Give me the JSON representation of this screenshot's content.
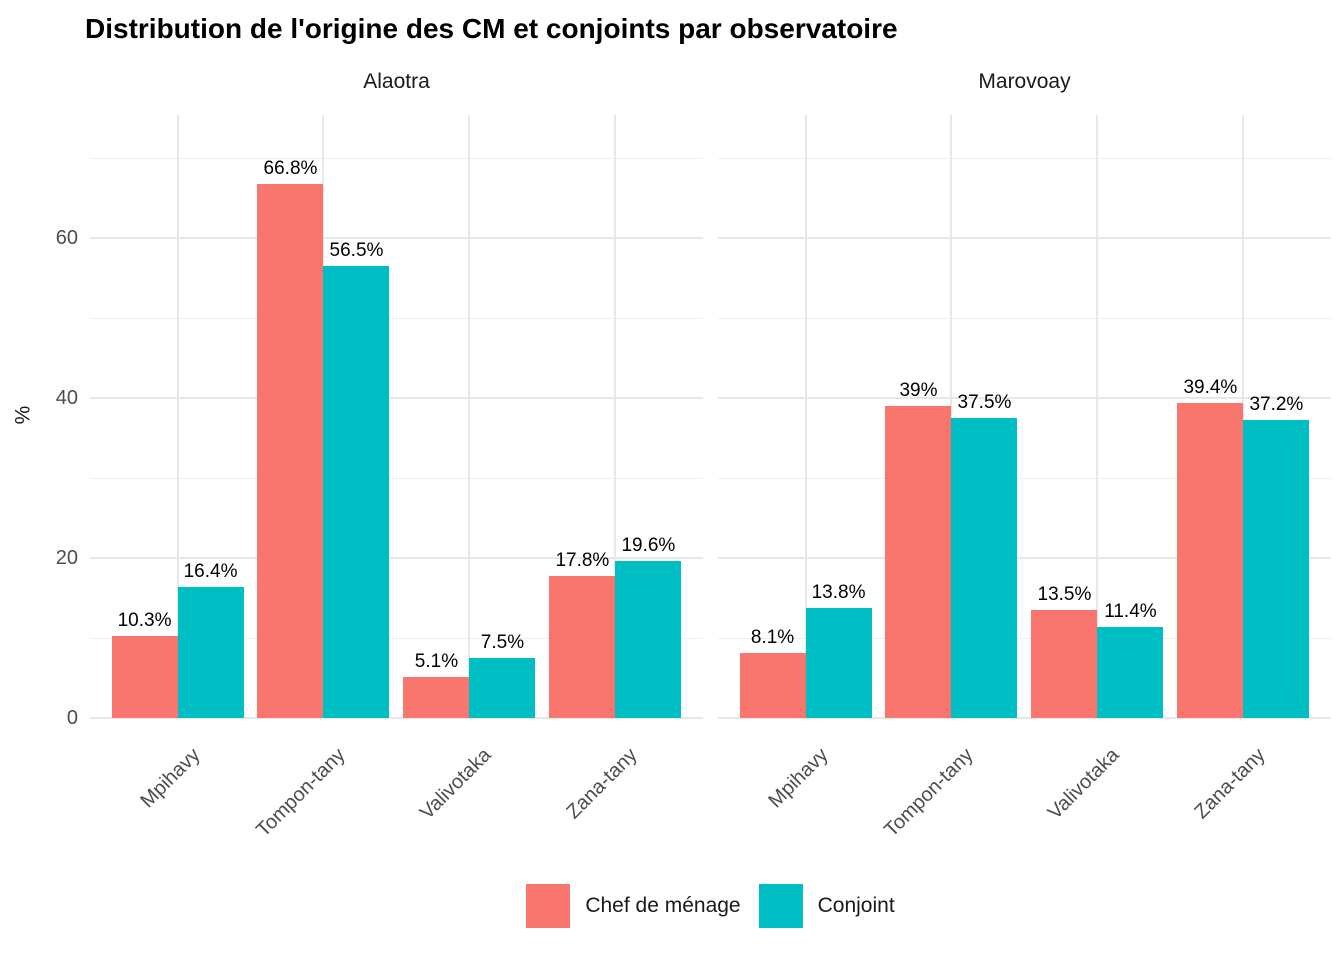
{
  "title": "Distribution de l'origine des CM et conjoints par observatoire",
  "ylabel": "%",
  "colors": {
    "chef_de_menage": "#F8766D",
    "conjoint": "#00BFC4"
  },
  "legend": {
    "position": "bottom",
    "entries": [
      {
        "label": "Chef de ménage",
        "color": "#F8766D"
      },
      {
        "label": "Conjoint",
        "color": "#00BFC4"
      }
    ]
  },
  "chart_data": {
    "type": "bar",
    "grouping": "dodged",
    "grid": true,
    "categories": [
      "Mpihavy",
      "Tompon-tany",
      "Valivotaka",
      "Zana-tany"
    ],
    "y_ticks": [
      0,
      20,
      40,
      60
    ],
    "y_minor_ticks": [
      10,
      30,
      50,
      70
    ],
    "ylim": [
      0,
      75.4
    ],
    "facets": [
      {
        "title": "Alaotra",
        "series": [
          {
            "name": "Chef de ménage",
            "color": "#F8766D",
            "values": [
              10.3,
              66.8,
              5.1,
              17.8
            ],
            "labels": [
              "10.3%",
              "66.8%",
              "5.1%",
              "17.8%"
            ]
          },
          {
            "name": "Conjoint",
            "color": "#00BFC4",
            "values": [
              16.4,
              56.5,
              7.5,
              19.6
            ],
            "labels": [
              "16.4%",
              "56.5%",
              "7.5%",
              "19.6%"
            ]
          }
        ]
      },
      {
        "title": "Marovoay",
        "series": [
          {
            "name": "Chef de ménage",
            "color": "#F8766D",
            "values": [
              8.1,
              39,
              13.5,
              39.4
            ],
            "labels": [
              "8.1%",
              "39%",
              "13.5%",
              "39.4%"
            ]
          },
          {
            "name": "Conjoint",
            "color": "#00BFC4",
            "values": [
              13.8,
              37.5,
              11.4,
              37.2
            ],
            "labels": [
              "13.8%",
              "37.5%",
              "11.4%",
              "37.2%"
            ]
          }
        ]
      }
    ]
  }
}
